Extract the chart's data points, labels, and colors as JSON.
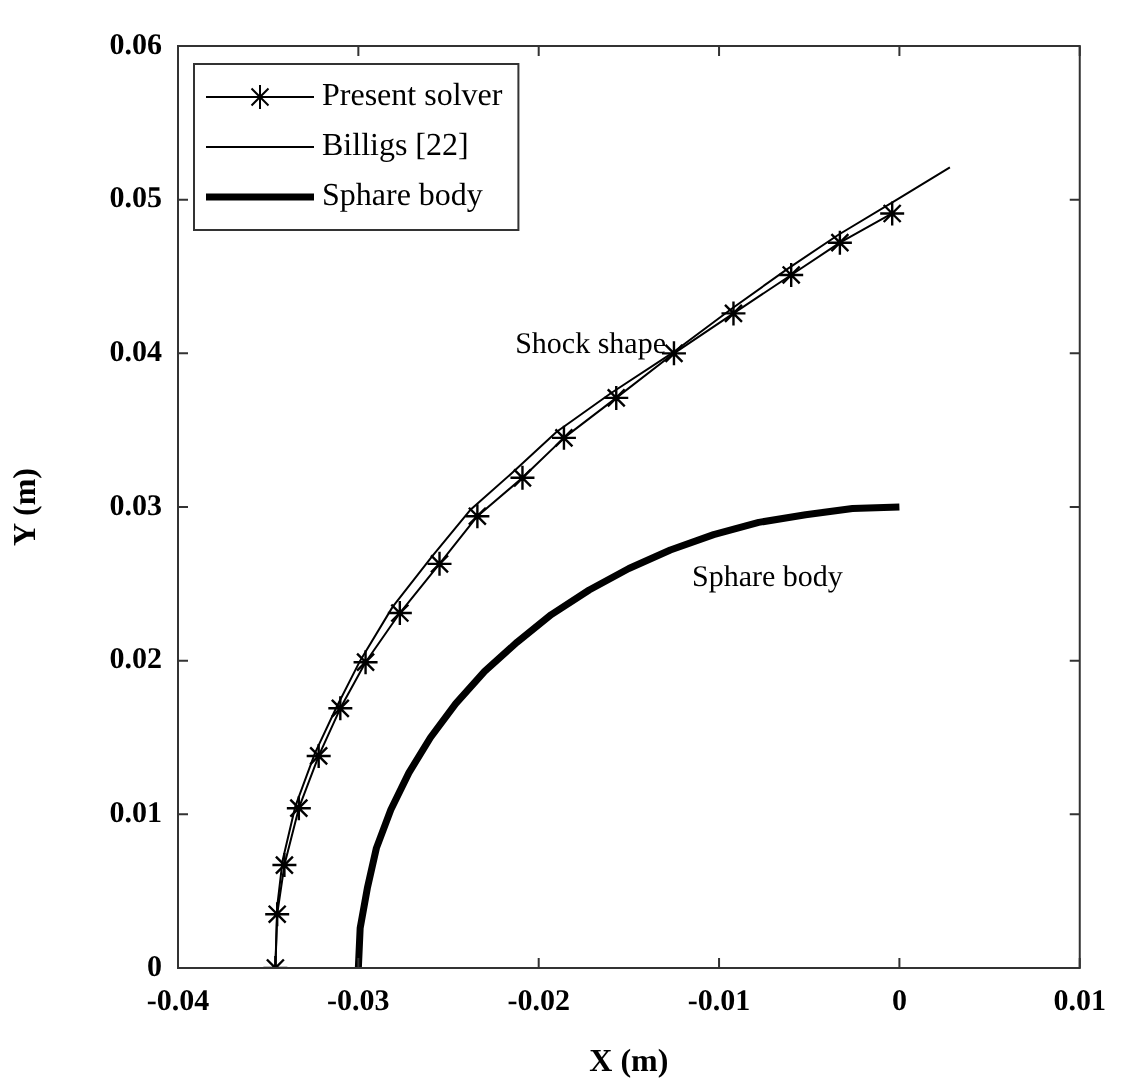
{
  "chart_data": {
    "type": "line",
    "xlabel": "X (m)",
    "ylabel": "Y (m)",
    "xlim": [
      -0.04,
      0.01
    ],
    "xticks": [
      -0.04,
      -0.03,
      -0.02,
      -0.01,
      0,
      0.01
    ],
    "ylim": [
      0,
      0.06
    ],
    "yticks": [
      0,
      0.01,
      0.02,
      0.03,
      0.04,
      0.05,
      0.06
    ],
    "grid": false,
    "legend": "top left",
    "series": [
      {
        "name": "Present solver",
        "color": "#000000",
        "marker": "cross",
        "x": [
          -0.0346,
          -0.0345,
          -0.0341,
          -0.0333,
          -0.0322,
          -0.031,
          -0.0296,
          -0.0277,
          -0.0255,
          -0.0234,
          -0.0209,
          -0.0186,
          -0.0157,
          -0.0125,
          -0.0092,
          -0.006,
          -0.0033,
          -0.0004
        ],
        "values": [
          0,
          0.0035,
          0.0067,
          0.0104,
          0.0138,
          0.0169,
          0.0199,
          0.0231,
          0.0263,
          0.0294,
          0.0319,
          0.0345,
          0.0371,
          0.04,
          0.0426,
          0.0451,
          0.0472,
          0.0491
        ]
      },
      {
        "name": "Billigs [22]",
        "color": "#000000",
        "marker": "none",
        "x": [
          -0.0346,
          -0.0345,
          -0.0342,
          -0.0335,
          -0.0324,
          -0.0312,
          -0.0299,
          -0.0281,
          -0.0259,
          -0.0238,
          -0.0213,
          -0.019,
          -0.016,
          -0.0125,
          -0.0093,
          -0.0062,
          -0.0034,
          0,
          0.0028
        ],
        "values": [
          0,
          0.004,
          0.007,
          0.0105,
          0.014,
          0.017,
          0.02,
          0.0235,
          0.0268,
          0.0298,
          0.0324,
          0.0349,
          0.0374,
          0.0401,
          0.0429,
          0.0455,
          0.0477,
          0.0501,
          0.0521
        ]
      },
      {
        "name": "Sphare body",
        "color": "#000000",
        "marker": "none",
        "x": [
          -0.03,
          -0.0299,
          -0.0295,
          -0.029,
          -0.0282,
          -0.0272,
          -0.026,
          -0.0246,
          -0.023,
          -0.0212,
          -0.0193,
          -0.0172,
          -0.015,
          -0.0127,
          -0.0103,
          -0.0078,
          -0.0052,
          -0.0026,
          0
        ],
        "values": [
          0,
          0.0026,
          0.0052,
          0.0078,
          0.0103,
          0.0127,
          0.015,
          0.0172,
          0.0193,
          0.0212,
          0.023,
          0.0246,
          0.026,
          0.0272,
          0.0282,
          0.029,
          0.0295,
          0.0299,
          0.03
        ]
      }
    ],
    "annotations": [
      {
        "text": "Shock shape",
        "x": -0.0125,
        "y": 0.04
      },
      {
        "text": "Sphare body",
        "x": -0.0115,
        "y": 0.0282
      }
    ]
  }
}
